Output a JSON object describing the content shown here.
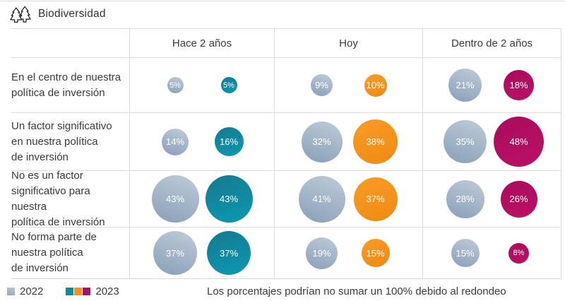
{
  "header": {
    "title": "Biodiversidad",
    "icon": "pine-trees-icon"
  },
  "chart_data": {
    "type": "table",
    "title": "Biodiversidad",
    "columns": [
      "Hace 2 años",
      "Hoy",
      "Dentro de 2 años"
    ],
    "series_years": [
      "2022",
      "2023"
    ],
    "unit": "%",
    "rows": [
      {
        "label": "En el centro de nuestra política de inversión",
        "label_lines": [
          "En el centro de nuestra",
          "política de inversión"
        ],
        "values_2022": [
          5,
          9,
          21
        ],
        "values_2023": [
          5,
          10,
          18
        ]
      },
      {
        "label": "Un factor significativo en nuestra política de inversión",
        "label_lines": [
          "Un factor significativo",
          "en nuestra política",
          "de inversión"
        ],
        "values_2022": [
          14,
          32,
          35
        ],
        "values_2023": [
          16,
          38,
          48
        ]
      },
      {
        "label": "No es un factor significativo para nuestra política de inversión",
        "label_lines": [
          "No es un factor",
          "significativo para nuestra",
          "política de inversión"
        ],
        "values_2022": [
          43,
          41,
          28
        ],
        "values_2023": [
          43,
          37,
          26
        ]
      },
      {
        "label": "No forma parte de nuestra política de inversión",
        "label_lines": [
          "No forma parte de",
          "nuestra política",
          "de inversión"
        ],
        "values_2022": [
          37,
          19,
          15
        ],
        "values_2023": [
          37,
          15,
          8
        ]
      }
    ]
  },
  "legend": {
    "items": [
      {
        "label": "2022",
        "colors": [
          "#a7bacd"
        ]
      },
      {
        "label": "2023",
        "colors": [
          "#0d8aa2",
          "#f6911c",
          "#b30e63"
        ]
      }
    ],
    "note": "Los porcentajes podrían no sumar un 100% debido al redondeo"
  },
  "colors": {
    "series_2022": "#a7bacd",
    "series_2023_hace_2_anos": "#0d8aa2",
    "series_2023_hoy": "#f6911c",
    "series_2023_dentro_2_anos": "#b30e63",
    "grid_line": "#dcdcdc",
    "text": "#3a3a3a",
    "bubble_label_text": "#ffffff"
  }
}
